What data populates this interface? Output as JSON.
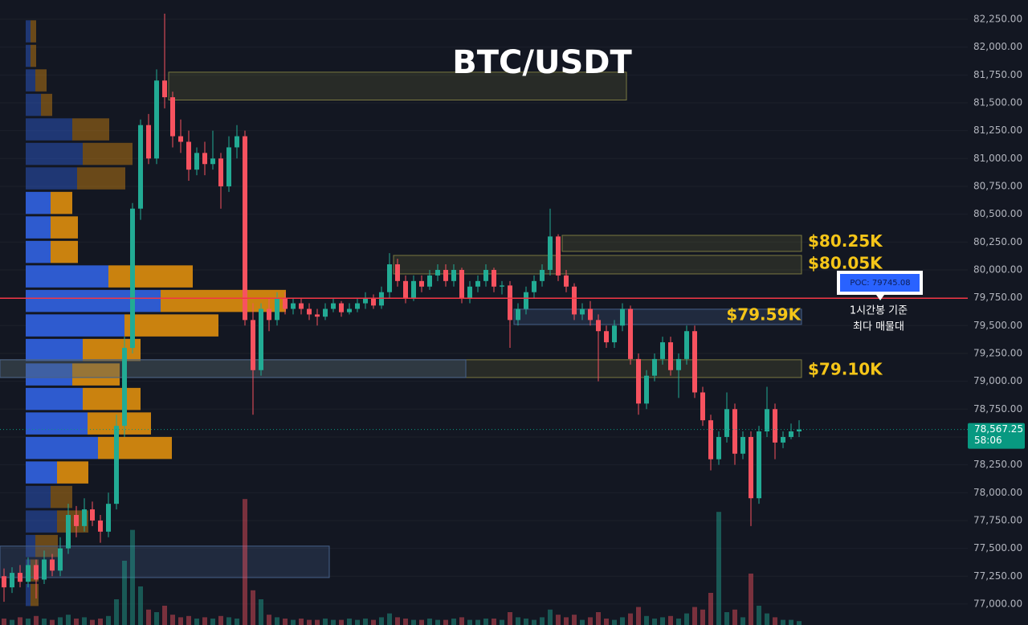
{
  "chart_data": {
    "type": "candlestick",
    "title": "BTC/USDT",
    "ylim": [
      76812,
      82423
    ],
    "yticks": [
      {
        "value": 77000,
        "label": "77,000.00"
      },
      {
        "value": 77250,
        "label": "77,250.00"
      },
      {
        "value": 77500,
        "label": "77,500.00"
      },
      {
        "value": 77750,
        "label": "77,750.00"
      },
      {
        "value": 78000,
        "label": "78,000.00"
      },
      {
        "value": 78250,
        "label": "78,250.00"
      },
      {
        "value": 78500,
        "label": "78,500.00"
      },
      {
        "value": 78750,
        "label": "78,750.00"
      },
      {
        "value": 79000,
        "label": "79,000.00"
      },
      {
        "value": 79250,
        "label": "79,250.00"
      },
      {
        "value": 79500,
        "label": "79,500.00"
      },
      {
        "value": 79750,
        "label": "79,750.00"
      },
      {
        "value": 80000,
        "label": "80,000.00"
      },
      {
        "value": 80250,
        "label": "80,250.00"
      },
      {
        "value": 80500,
        "label": "80,500.00"
      },
      {
        "value": 80750,
        "label": "80,750.00"
      },
      {
        "value": 81000,
        "label": "81,000.00"
      },
      {
        "value": 81250,
        "label": "81,250.00"
      },
      {
        "value": 81500,
        "label": "81,500.00"
      },
      {
        "value": 81750,
        "label": "81,750.00"
      },
      {
        "value": 82000,
        "label": "82,000.00"
      },
      {
        "value": 82250,
        "label": "82,250.00"
      }
    ],
    "grid": true,
    "up_color": "#22ab94",
    "down_color": "#f7525f",
    "ohlc": [
      [
        77250,
        77320,
        77020,
        77150
      ],
      [
        77150,
        77330,
        77100,
        77280
      ],
      [
        77280,
        77350,
        77150,
        77200
      ],
      [
        77200,
        77420,
        77150,
        77350
      ],
      [
        77350,
        77400,
        77050,
        77220
      ],
      [
        77220,
        77480,
        77180,
        77400
      ],
      [
        77400,
        77450,
        77250,
        77300
      ],
      [
        77300,
        77600,
        77250,
        77500
      ],
      [
        77500,
        77900,
        77450,
        77800
      ],
      [
        77800,
        77880,
        77600,
        77700
      ],
      [
        77700,
        77950,
        77650,
        77850
      ],
      [
        77850,
        77920,
        77700,
        77750
      ],
      [
        77750,
        77800,
        77550,
        77650
      ],
      [
        77650,
        78000,
        77600,
        77900
      ],
      [
        77900,
        78700,
        77850,
        78600
      ],
      [
        78600,
        79400,
        78500,
        79300
      ],
      [
        79300,
        80600,
        79250,
        80550
      ],
      [
        80550,
        81350,
        80450,
        81300
      ],
      [
        81300,
        81400,
        80950,
        81000
      ],
      [
        81000,
        81800,
        80950,
        81700
      ],
      [
        81700,
        82300,
        81450,
        81550
      ],
      [
        81550,
        81600,
        81100,
        81200
      ],
      [
        81200,
        81350,
        81050,
        81150
      ],
      [
        81150,
        81250,
        80800,
        80900
      ],
      [
        80900,
        81100,
        80850,
        81050
      ],
      [
        81050,
        81150,
        80850,
        80950
      ],
      [
        80950,
        81250,
        80900,
        81000
      ],
      [
        81000,
        81050,
        80550,
        80750
      ],
      [
        80750,
        81200,
        80700,
        81100
      ],
      [
        81100,
        81300,
        81000,
        81200
      ],
      [
        81200,
        81250,
        79500,
        79550
      ],
      [
        79550,
        79700,
        78700,
        79100
      ],
      [
        79100,
        79700,
        79050,
        79650
      ],
      [
        79650,
        79750,
        79450,
        79550
      ],
      [
        79550,
        79800,
        79500,
        79750
      ],
      [
        79750,
        79800,
        79600,
        79650
      ],
      [
        79650,
        79750,
        79600,
        79700
      ],
      [
        79700,
        79750,
        79600,
        79650
      ],
      [
        79650,
        79700,
        79550,
        79600
      ],
      [
        79600,
        79650,
        79500,
        79580
      ],
      [
        79580,
        79700,
        79550,
        79650
      ],
      [
        79650,
        79750,
        79620,
        79700
      ],
      [
        79700,
        79720,
        79580,
        79620
      ],
      [
        79620,
        79700,
        79600,
        79650
      ],
      [
        79650,
        79750,
        79620,
        79700
      ],
      [
        79700,
        79800,
        79650,
        79750
      ],
      [
        79750,
        79780,
        79650,
        79680
      ],
      [
        79680,
        79850,
        79650,
        79800
      ],
      [
        79800,
        80150,
        79750,
        80050
      ],
      [
        80050,
        80100,
        79850,
        79900
      ],
      [
        79900,
        79950,
        79700,
        79750
      ],
      [
        79750,
        79950,
        79720,
        79900
      ],
      [
        79900,
        79950,
        79800,
        79850
      ],
      [
        79850,
        80000,
        79820,
        79950
      ],
      [
        79950,
        80050,
        79900,
        80000
      ],
      [
        80000,
        80050,
        79850,
        79900
      ],
      [
        79900,
        80050,
        79850,
        80000
      ],
      [
        80000,
        80020,
        79700,
        79750
      ],
      [
        79750,
        79900,
        79700,
        79850
      ],
      [
        79850,
        79950,
        79800,
        79900
      ],
      [
        79900,
        80050,
        79850,
        80000
      ],
      [
        80000,
        80020,
        79800,
        79850
      ],
      [
        79850,
        79900,
        79780,
        79860
      ],
      [
        79860,
        79900,
        79300,
        79550
      ],
      [
        79550,
        79700,
        79500,
        79650
      ],
      [
        79650,
        79850,
        79600,
        79800
      ],
      [
        79800,
        79950,
        79750,
        79900
      ],
      [
        79900,
        80050,
        79850,
        80000
      ],
      [
        80000,
        80550,
        79950,
        80300
      ],
      [
        80300,
        80320,
        79900,
        79950
      ],
      [
        79950,
        80000,
        79800,
        79850
      ],
      [
        79850,
        79880,
        79550,
        79600
      ],
      [
        79600,
        79700,
        79550,
        79650
      ],
      [
        79650,
        79720,
        79500,
        79550
      ],
      [
        79550,
        79600,
        79000,
        79450
      ],
      [
        79450,
        79500,
        79300,
        79350
      ],
      [
        79350,
        79550,
        79300,
        79500
      ],
      [
        79500,
        79700,
        79450,
        79650
      ],
      [
        79650,
        79680,
        79150,
        79200
      ],
      [
        79200,
        79250,
        78700,
        78800
      ],
      [
        78800,
        79100,
        78750,
        79050
      ],
      [
        79050,
        79250,
        79000,
        79200
      ],
      [
        79200,
        79400,
        79150,
        79350
      ],
      [
        79350,
        79400,
        79050,
        79100
      ],
      [
        79100,
        79250,
        78850,
        79200
      ],
      [
        79200,
        79500,
        79150,
        79450
      ],
      [
        79450,
        79500,
        78850,
        78900
      ],
      [
        78900,
        78950,
        78600,
        78650
      ],
      [
        78650,
        78700,
        78200,
        78300
      ],
      [
        78300,
        78550,
        78250,
        78500
      ],
      [
        78500,
        78900,
        78450,
        78750
      ],
      [
        78750,
        78800,
        78250,
        78350
      ],
      [
        78350,
        78550,
        78300,
        78500
      ],
      [
        78500,
        78550,
        77700,
        77950
      ],
      [
        77950,
        78600,
        77900,
        78550
      ],
      [
        78550,
        78950,
        78500,
        78750
      ],
      [
        78750,
        78800,
        78300,
        78450
      ],
      [
        78450,
        78550,
        78400,
        78500
      ],
      [
        78500,
        78620,
        78480,
        78550
      ],
      [
        78550,
        78650,
        78500,
        78567.25
      ]
    ],
    "volume": [
      5,
      4,
      6,
      5,
      7,
      5,
      4,
      6,
      8,
      5,
      6,
      4,
      5,
      7,
      20,
      50,
      74,
      30,
      12,
      10,
      15,
      8,
      6,
      7,
      5,
      6,
      5,
      7,
      6,
      5,
      98,
      27,
      20,
      8,
      6,
      5,
      4,
      5,
      4,
      4,
      5,
      4,
      4,
      5,
      4,
      5,
      4,
      6,
      9,
      6,
      5,
      4,
      4,
      5,
      4,
      4,
      5,
      6,
      4,
      4,
      5,
      5,
      4,
      10,
      6,
      5,
      4,
      6,
      12,
      8,
      6,
      8,
      4,
      6,
      10,
      5,
      4,
      6,
      9,
      14,
      7,
      5,
      6,
      7,
      5,
      9,
      14,
      12,
      25,
      88,
      10,
      12,
      6,
      40,
      15,
      9,
      6,
      4,
      4,
      3
    ],
    "vlim": [
      0,
      100
    ],
    "volume_profile": {
      "bins": [
        76975,
        77195,
        77415,
        77635,
        77855,
        78075,
        78295,
        78515,
        78735,
        78955,
        79175,
        79395,
        79615,
        79835,
        80055,
        80275,
        80495,
        80715,
        80935,
        81155,
        81375,
        81595,
        81815,
        82035,
        82255
      ],
      "up": [
        6,
        6,
        12,
        39,
        31,
        39,
        90,
        77,
        71,
        58,
        71,
        123,
        168,
        103,
        31,
        31,
        31,
        64,
        71,
        58,
        19,
        12,
        6,
        6
      ],
      "down": [
        10,
        10,
        28,
        39,
        27,
        39,
        92,
        79,
        72,
        59,
        72,
        117,
        156,
        105,
        34,
        34,
        27,
        60,
        62,
        46,
        14,
        14,
        7,
        7
      ],
      "xlim": [
        0,
        330
      ],
      "value_area": [
        78075,
        80715
      ],
      "up_color": "#2f5fd9",
      "down_color": "#d4880f"
    },
    "zones": [
      {
        "low": 81525,
        "high": 81775,
        "from": 21,
        "to": 78,
        "color": "yellow"
      },
      {
        "low": 80166,
        "high": 80310,
        "from": 70,
        "level": 80250,
        "label": "$80.25K",
        "color": "yellow"
      },
      {
        "low": 79964,
        "high": 80130,
        "from": 49,
        "level": 80050,
        "label": "$80.05K",
        "color": "yellow"
      },
      {
        "low": 79510,
        "high": 79647,
        "from": 64,
        "level": 79590,
        "label": "$79.59K",
        "color": "blue"
      },
      {
        "low": 79034,
        "high": 79193,
        "from": 0,
        "level": 79100,
        "label": "$79.10K",
        "color": "yellow"
      },
      {
        "low": 79034,
        "high": 79193,
        "from": 0,
        "to": 58,
        "color": "blue"
      },
      {
        "low": 77238,
        "high": 77520,
        "from": 0,
        "to": 41,
        "color": "blue"
      }
    ],
    "poc": {
      "value": 79745.08,
      "label": "POC: 79745.08",
      "note": [
        "1시간봉 기준",
        "최다 매물대"
      ],
      "color": "#f23645"
    },
    "last_price": {
      "value": 78567.25,
      "label": "78,567.25",
      "countdown": "58:06",
      "color": "#089981"
    }
  }
}
